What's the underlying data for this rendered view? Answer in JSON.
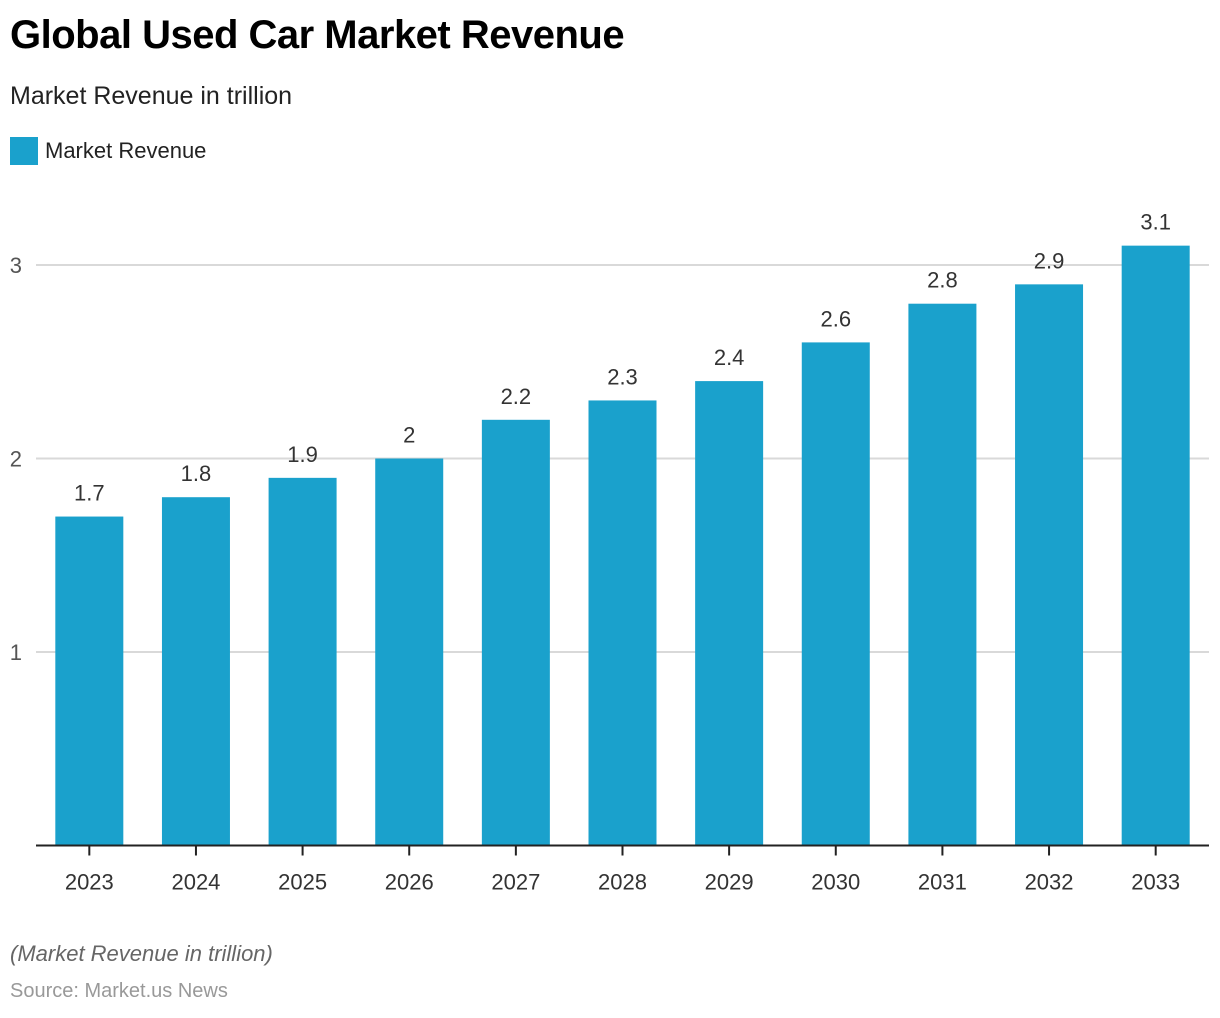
{
  "header": {
    "title": "Global Used Car Market Revenue",
    "subtitle": "Market Revenue in trillion"
  },
  "legend": {
    "items": [
      {
        "label": "Market Revenue",
        "color": "#1aa1cc"
      }
    ]
  },
  "footer": {
    "note": "(Market Revenue in trillion)",
    "source": "Source: Market.us News"
  },
  "colors": {
    "bar": "#1aa1cc",
    "grid": "#d9d9d9",
    "axis": "#222222",
    "label": "#333333",
    "tick": "#555555"
  },
  "chart_data": {
    "type": "bar",
    "title": "Global Used Car Market Revenue",
    "subtitle": "Market Revenue in trillion",
    "xlabel": "",
    "ylabel": "",
    "categories": [
      "2023",
      "2024",
      "2025",
      "2026",
      "2027",
      "2028",
      "2029",
      "2030",
      "2031",
      "2032",
      "2033"
    ],
    "series": [
      {
        "name": "Market Revenue",
        "values": [
          1.7,
          1.8,
          1.9,
          2,
          2.2,
          2.3,
          2.4,
          2.6,
          2.8,
          2.9,
          3.1
        ]
      }
    ],
    "data_labels": [
      "1.7",
      "1.8",
      "1.9",
      "2",
      "2.2",
      "2.3",
      "2.4",
      "2.6",
      "2.8",
      "2.9",
      "3.1"
    ],
    "yticks": [
      1,
      2,
      3
    ],
    "ylim": [
      0,
      3.1
    ],
    "grid": true,
    "legend_position": "top-left"
  }
}
